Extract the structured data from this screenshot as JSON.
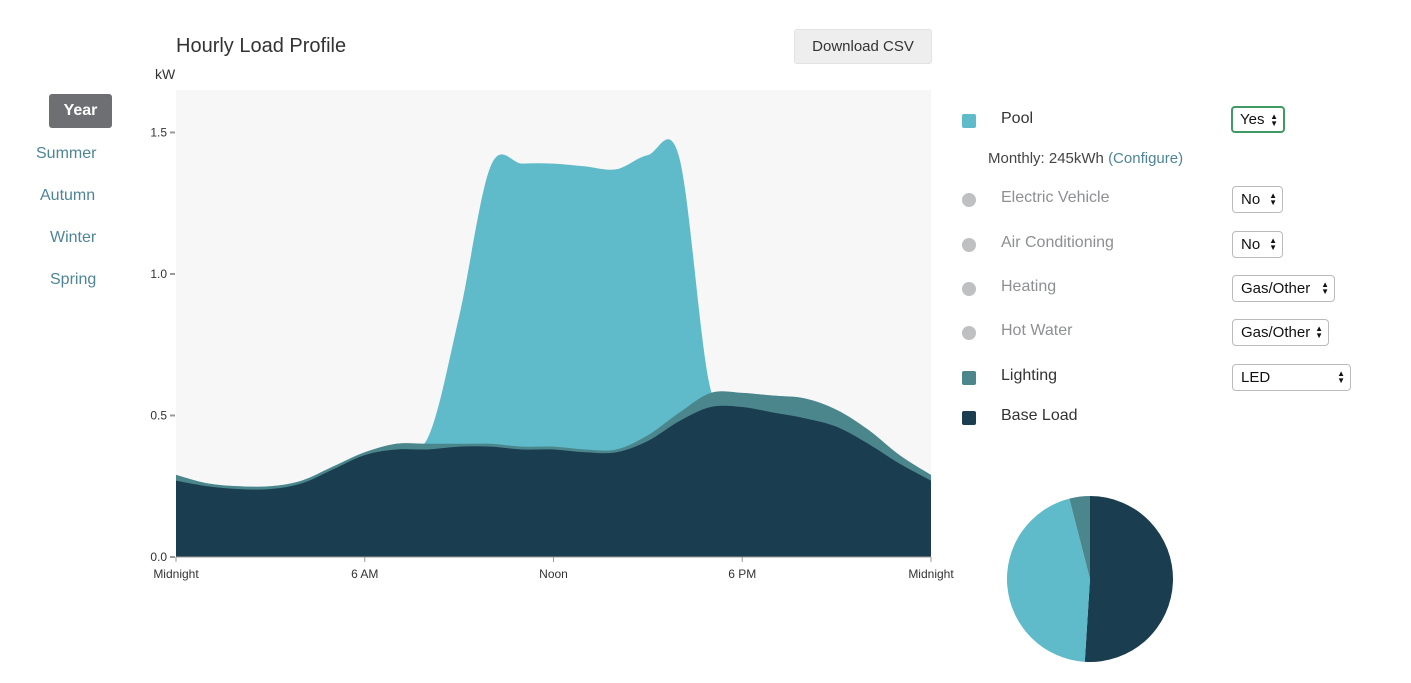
{
  "seasons": [
    "Year",
    "Summer",
    "Autumn",
    "Winter",
    "Spring"
  ],
  "active_season": "Year",
  "download_label": "Download CSV",
  "chart_data": {
    "type": "area",
    "title": "Hourly Load Profile",
    "ylabel": "kW",
    "xlabel": "",
    "ylim": [
      0,
      1.65
    ],
    "yticks": [
      0.0,
      0.5,
      1.0,
      1.5
    ],
    "ytick_labels": [
      "0.0",
      "0.5",
      "1.0",
      "1.5"
    ],
    "xlim": [
      0,
      24
    ],
    "xticks": [
      0,
      6,
      12,
      18,
      24
    ],
    "xtick_labels": [
      "Midnight",
      "6 AM",
      "Noon",
      "6 PM",
      "Midnight"
    ],
    "x": [
      0,
      1,
      2,
      3,
      4,
      5,
      6,
      7,
      8,
      9,
      10,
      11,
      12,
      13,
      14,
      15,
      16,
      17,
      18,
      19,
      20,
      21,
      22,
      23,
      24
    ],
    "stacked": true,
    "series": [
      {
        "name": "Base Load",
        "color": "#1b3d50",
        "values": [
          0.27,
          0.25,
          0.24,
          0.24,
          0.26,
          0.31,
          0.36,
          0.38,
          0.38,
          0.39,
          0.39,
          0.38,
          0.38,
          0.37,
          0.37,
          0.41,
          0.48,
          0.53,
          0.53,
          0.51,
          0.49,
          0.46,
          0.4,
          0.33,
          0.27
        ]
      },
      {
        "name": "Lighting",
        "color": "#4b868c",
        "values": [
          0.02,
          0.01,
          0.01,
          0.01,
          0.01,
          0.01,
          0.01,
          0.02,
          0.02,
          0.01,
          0.01,
          0.01,
          0.01,
          0.01,
          0.01,
          0.02,
          0.03,
          0.05,
          0.05,
          0.06,
          0.07,
          0.06,
          0.05,
          0.03,
          0.02
        ]
      },
      {
        "name": "Pool",
        "color": "#5fbac9",
        "values": [
          0,
          0,
          0,
          0,
          0,
          0,
          0,
          0,
          0.02,
          0.45,
          0.98,
          1.0,
          1.0,
          1.0,
          0.99,
          0.99,
          0.9,
          0.01,
          0,
          0,
          0,
          0,
          0,
          0,
          0
        ]
      }
    ]
  },
  "legend": [
    {
      "name": "Pool",
      "enabled": true,
      "color": "#5fbac9",
      "value": "Yes"
    },
    {
      "name": "Electric Vehicle",
      "enabled": false,
      "value": "No"
    },
    {
      "name": "Air Conditioning",
      "enabled": false,
      "value": "No"
    },
    {
      "name": "Heating",
      "enabled": false,
      "value": "Gas/Other"
    },
    {
      "name": "Hot Water",
      "enabled": false,
      "value": "Gas/Other"
    },
    {
      "name": "Lighting",
      "enabled": true,
      "color": "#4b868c",
      "value": "LED"
    },
    {
      "name": "Base Load",
      "enabled": true,
      "color": "#1b3d50"
    }
  ],
  "pool_monthly": "Monthly: 245kWh",
  "pool_configure": "(Configure)",
  "pie_chart": {
    "type": "pie",
    "slices": [
      {
        "name": "Base Load",
        "value": 0.51,
        "color": "#1b3d50"
      },
      {
        "name": "Pool",
        "value": 0.45,
        "color": "#5fbac9"
      },
      {
        "name": "Lighting",
        "value": 0.04,
        "color": "#4b868c"
      }
    ]
  }
}
